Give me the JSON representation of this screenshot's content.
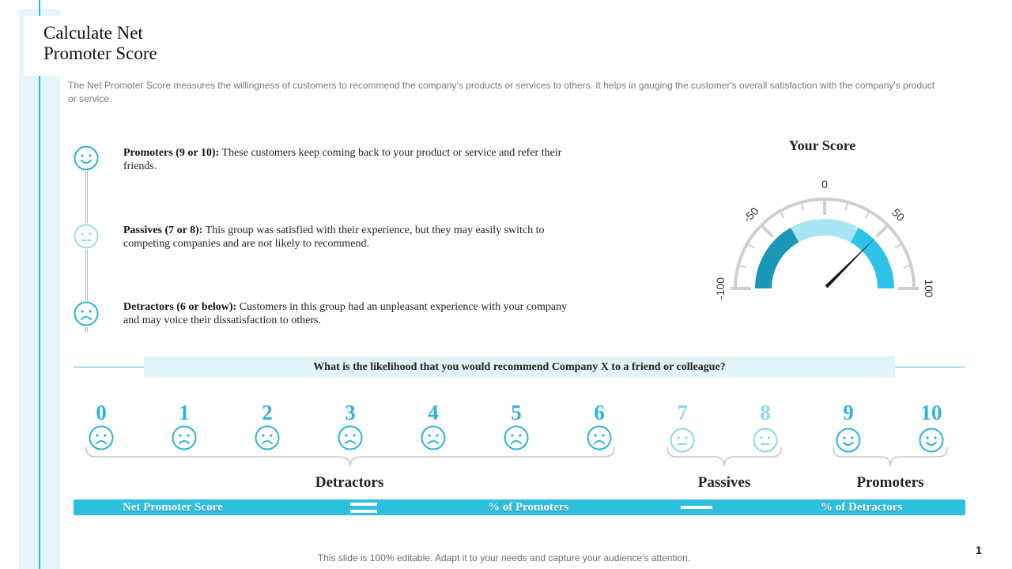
{
  "slide": {
    "title_line1": "Calculate Net",
    "title_line2": "Promoter Score",
    "intro": "The Net Promoter Score measures the willingness of customers to recommend the company's products or services to others. It helps in gauging the customer's overall  satisfaction with the company's product or service.",
    "page_number": "1",
    "footer": "This slide is 100% editable. Adapt it to your needs and capture your audience's attention."
  },
  "categories": [
    {
      "label": "Promoters (9 or 10):",
      "text": " These customers keep coming back to your product or service and refer their friends.",
      "icon": "smile-face-icon",
      "color": "#2fb4d6"
    },
    {
      "label": "Passives (7 or 8):",
      "text": " This group was satisfied with their experience, but they may easily switch to competing companies and are not likely to recommend.",
      "icon": "neutral-face-icon",
      "color": "#9fdcec"
    },
    {
      "label": "Detractors (6 or below):",
      "text": " Customers in this group had an unpleasant experience with your company and may voice their dissatisfaction to others.",
      "icon": "sad-face-icon",
      "color": "#2fb4d6"
    }
  ],
  "gauge": {
    "title": "Your Score",
    "labels": [
      "-100",
      "-50",
      "0",
      "50",
      "100"
    ],
    "min": -100,
    "max": 100,
    "needle_value": 50,
    "segments": [
      {
        "name": "Detractors",
        "color": "#1a97b6"
      },
      {
        "name": "Passives",
        "color": "#a8e4f3"
      },
      {
        "name": "Promoters",
        "color": "#2cc3e6"
      }
    ]
  },
  "question": "What is the likelihood that you would recommend Company X to a friend or colleague?",
  "scale": [
    {
      "n": "0",
      "face": "sad",
      "color": "#2fb4d6"
    },
    {
      "n": "1",
      "face": "sad",
      "color": "#2fb4d6"
    },
    {
      "n": "2",
      "face": "sad",
      "color": "#2fb4d6"
    },
    {
      "n": "3",
      "face": "sad",
      "color": "#2fb4d6"
    },
    {
      "n": "4",
      "face": "sad",
      "color": "#2fb4d6"
    },
    {
      "n": "5",
      "face": "sad",
      "color": "#2fb4d6"
    },
    {
      "n": "6",
      "face": "sad",
      "color": "#2fb4d6"
    },
    {
      "n": "7",
      "face": "neutral",
      "color": "#8fd6ea"
    },
    {
      "n": "8",
      "face": "neutral",
      "color": "#8fd6ea"
    },
    {
      "n": "9",
      "face": "smile",
      "color": "#2fb4d6"
    },
    {
      "n": "10",
      "face": "smile",
      "color": "#2fb4d6"
    }
  ],
  "groups": [
    "Detractors",
    "Passives",
    "Promoters"
  ],
  "formula": {
    "result": "Net Promoter Score",
    "term1": "% of Promoters",
    "term2": "% of Detractors",
    "bar_color": "#2dbfe0"
  }
}
